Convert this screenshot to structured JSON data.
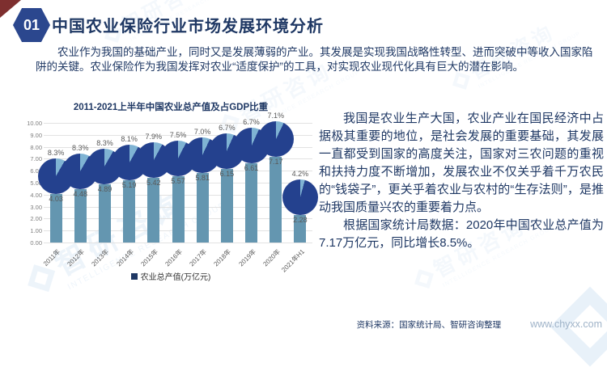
{
  "header": {
    "badge": "01",
    "title": "中国农业保险行业市场发展环境分析"
  },
  "intro": "农业作为我国的基础产业，同时又是发展薄弱的产业。其发展是实现我国战略性转型、进而突破中等收入国家陷阱的关键。农业保险作为我国发挥对农业“适度保护”的工具，对实现农业现代化具有巨大的潜在影响。",
  "chart_data": {
    "type": "bar",
    "title": "2011-2021上半年中国农业总产值及占GDP比重",
    "categories": [
      "2011年",
      "2012年",
      "2013年",
      "2014年",
      "2015年",
      "2016年",
      "2017年",
      "2018年",
      "2019年",
      "2020年",
      "2021年H1"
    ],
    "series": [
      {
        "name": "农业总产值(万亿元)",
        "type": "bar",
        "values": [
          4.03,
          4.48,
          4.89,
          5.19,
          5.42,
          5.57,
          5.81,
          6.15,
          6.61,
          7.17,
          2.28
        ]
      },
      {
        "name": "占GDP比重",
        "type": "pie-marker",
        "unit": "%",
        "values": [
          8.3,
          8.3,
          8.3,
          8.1,
          7.9,
          7.5,
          7.0,
          6.7,
          6.7,
          7.1,
          4.2
        ]
      }
    ],
    "xlabel": "",
    "ylabel": "",
    "ylim": [
      0,
      10
    ],
    "ytick_step": 1,
    "ytick_decimals": 2,
    "grid": true,
    "legend_position": "bottom"
  },
  "right_panel": {
    "p1": "我国是农业生产大国，农业产业在国民经济中占据极其重要的地位，是社会发展的重要基础，其发展一直都受到国家的高度关注，国家对三农问题的重视和扶持力度不断增加，发展农业不仅关乎着千万农民的“钱袋子”，更关乎着农业与农村的“生存法则”，是推动我国质量兴农的重要着力点。",
    "p2": "根据国家统计局数据：2020年中国农业总产值为7.17万亿元，同比增长8.5%。"
  },
  "footer": {
    "source": "资料来源：国家统计局、智研咨询整理",
    "url": "www.chyxx.com"
  },
  "watermark": {
    "text": "智研咨询",
    "subtext": "INTELLIGENCE RESEARCH GROUP"
  },
  "colors": {
    "accent_navy": "#1F3864",
    "badge": "#2B478E",
    "corner_triangle": "#7E2F2F",
    "bar": "#6496B0",
    "pie_dark": "#24418E",
    "pie_light": "#7FB3D3",
    "gridline": "#E2E2E2",
    "label_gray": "#595959",
    "watermark_blue": "#5B9BD5",
    "url_gray": "#9FB3C8"
  }
}
